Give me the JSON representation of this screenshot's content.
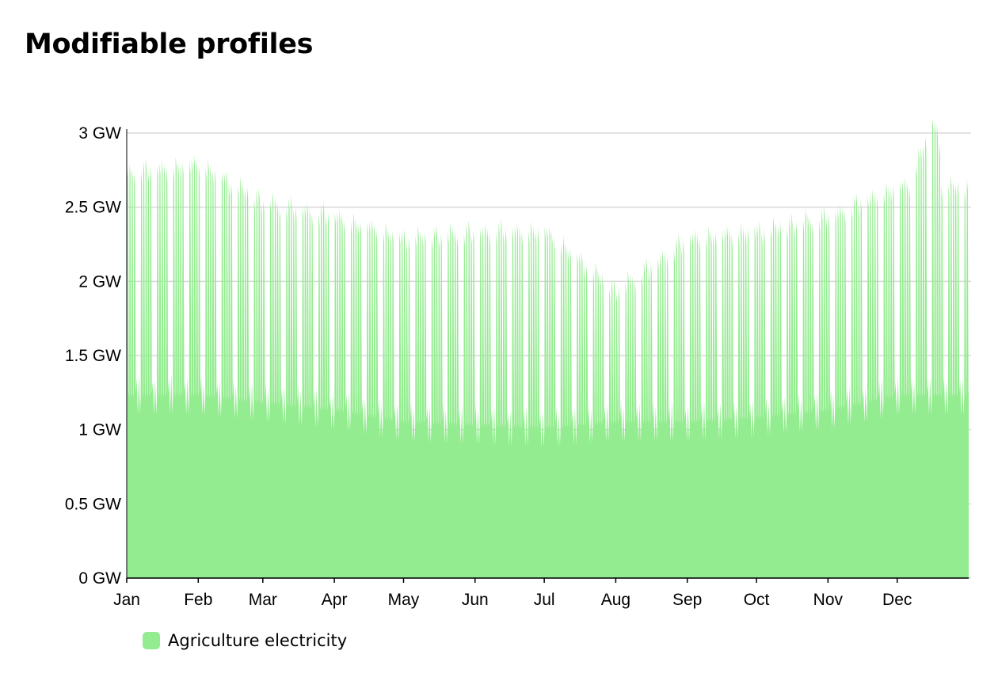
{
  "title": "Modifiable profiles",
  "colors": {
    "series": "#93ec8f",
    "grid": "#d9d9d9",
    "axis": "#000000"
  },
  "chart_data": {
    "type": "area",
    "title": "Modifiable profiles",
    "xlabel": "",
    "ylabel": "",
    "ylim": [
      0,
      3
    ],
    "yticks": [
      0,
      0.5,
      1,
      1.5,
      2,
      2.5,
      3
    ],
    "ytick_labels": [
      "0 GW",
      "0.5 GW",
      "1 GW",
      "1.5 GW",
      "2 GW",
      "2.5 GW",
      "3 GW"
    ],
    "x_range_days": [
      0,
      365
    ],
    "xticks": [
      {
        "day": 0,
        "label": "Jan"
      },
      {
        "day": 31,
        "label": "Feb"
      },
      {
        "day": 59,
        "label": "Mar"
      },
      {
        "day": 90,
        "label": "Apr"
      },
      {
        "day": 120,
        "label": "May"
      },
      {
        "day": 151,
        "label": "Jun"
      },
      {
        "day": 181,
        "label": "Jul"
      },
      {
        "day": 212,
        "label": "Aug"
      },
      {
        "day": 243,
        "label": "Sep"
      },
      {
        "day": 273,
        "label": "Oct"
      },
      {
        "day": 304,
        "label": "Nov"
      },
      {
        "day": 334,
        "label": "Dec"
      }
    ],
    "grid": true,
    "legend_position": "bottom-left",
    "series": [
      {
        "name": "Agriculture electricity",
        "color": "#93ec8f",
        "day_peak_month_start": [
          2.75,
          2.8,
          2.55,
          2.45,
          2.3,
          2.35,
          2.35,
          1.95,
          2.3,
          2.35,
          2.45,
          2.65
        ],
        "night_base_month_start": [
          1.1,
          1.1,
          1.05,
          1.0,
          0.92,
          0.9,
          0.88,
          0.92,
          0.92,
          0.95,
          1.0,
          1.1
        ],
        "peak_max": 3.08
      }
    ]
  }
}
